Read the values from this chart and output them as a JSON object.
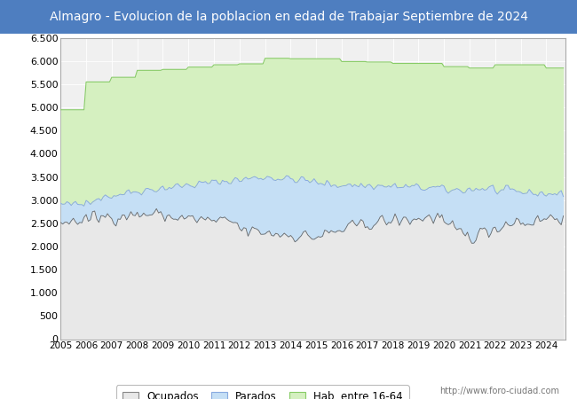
{
  "title": "Almagro - Evolucion de la poblacion en edad de Trabajar Septiembre de 2024",
  "title_bg_color": "#4e7ec0",
  "title_text_color": "#ffffff",
  "ylim": [
    0,
    6500
  ],
  "yticks": [
    0,
    500,
    1000,
    1500,
    2000,
    2500,
    3000,
    3500,
    4000,
    4500,
    5000,
    5500,
    6000,
    6500
  ],
  "color_hab": "#d5f0c0",
  "color_parados": "#c5dff5",
  "color_ocupados": "#e8e8e8",
  "line_color_hab": "#88cc66",
  "line_color_parados": "#88aae0",
  "line_color_ocupados": "#666666",
  "url_text": "http://www.foro-ciudad.com",
  "legend_labels": [
    "Ocupados",
    "Parados",
    "Hab. entre 16-64"
  ],
  "title_fontsize": 10,
  "tick_fontsize": 8,
  "legend_fontsize": 8.5,
  "chart_bg_color": "#f0f0f0",
  "grid_color": "#ffffff"
}
